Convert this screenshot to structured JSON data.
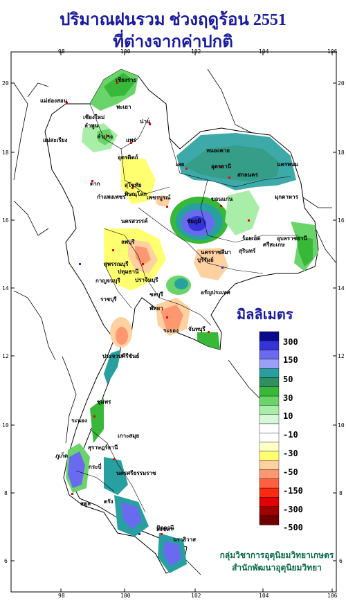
{
  "title": {
    "line1": "ปริมาณฝนรวม ช่วงฤดูร้อน 2551",
    "line2": "ที่ต่างจากค่าปกติ"
  },
  "axes": {
    "top_ticks": [
      "98",
      "100",
      "102",
      "104",
      "106"
    ],
    "bottom_ticks": [
      "98",
      "100",
      "102",
      "104",
      "106"
    ],
    "left_ticks": [
      "20",
      "18",
      "16",
      "14",
      "12",
      "10",
      "8",
      "6"
    ],
    "right_ticks": [
      "20",
      "18",
      "16",
      "14",
      "12",
      "10",
      "8",
      "6"
    ]
  },
  "legend": {
    "title": "มิลลิเมตร",
    "labels": [
      "300",
      "150",
      "50",
      "30",
      "10",
      "-10",
      "-30",
      "-50",
      "-150",
      "-300",
      "-500"
    ],
    "colors": [
      "#0a0a8c",
      "#3434d8",
      "#6a6af0",
      "#9aa0f8",
      "#28a0a0",
      "#2f8f5f",
      "#38b838",
      "#6ad46a",
      "#a8eea8",
      "#d6f8d6",
      "#ffffff",
      "#ffffff",
      "#ffffc8",
      "#ffff70",
      "#ffd0a0",
      "#ff9870",
      "#ff6040",
      "#ff2a10",
      "#e00000",
      "#a00000",
      "#700000"
    ]
  },
  "credit": {
    "line1": "กลุ่มวิชาการอุตุนิยมวิทยาเกษตร",
    "line2": "สำนักพัฒนาอุตุนิยมวิทยา"
  },
  "places": [
    "เชียงราย",
    "แม่ฮ่องสอน",
    "พะเยา",
    "เชียงใหม่",
    "ลำพูน",
    "น่าน",
    "แพร่",
    "แม่สะเรียง",
    "ลำปาง",
    "อุตรดิตถ์",
    "หนองคาย",
    "นครพนม",
    "ตาก",
    "สุโขทัย",
    "อุดรธานี",
    "สกลนคร",
    "เลย",
    "พิษณุโลก",
    "กำแพงเพชร",
    "เพชรบูรณ์",
    "ขอนแก่น",
    "มุกดาหาร",
    "นครสวรรค์",
    "ชัยภูมิ",
    "ร้อยเอ็ด",
    "อุบลราชธานี",
    "ลพบุรี",
    "สุพรรณบุรี",
    "นครราชสีมา",
    "สุรินทร์",
    "ศรีสะเกษ",
    "กาญจนบุรี",
    "ปทุมธานี",
    "ปราจีนบุรี",
    "บุรีรัมย์",
    "อรัญประเทศ",
    "ราชบุรี",
    "ชลบุรี",
    "พัทยา",
    "ระยอง",
    "จันทบุรี",
    "ประจวบคีรีขันธ์",
    "ชุมพร",
    "ระนอง",
    "เกาะสมุย",
    "สุราษฎร์ธานี",
    "ภูเก็ต",
    "กระบี่",
    "นครศรีธรรมราช",
    "ตรัง",
    "สงขลา",
    "สตูล",
    "ปัตตานี",
    "นราธิวาส"
  ]
}
